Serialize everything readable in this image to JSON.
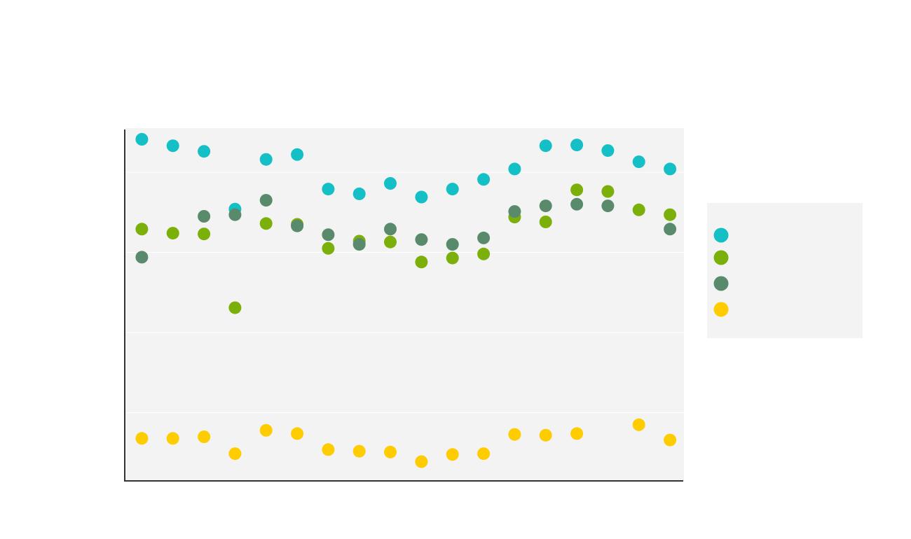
{
  "chart_data": {
    "type": "scatter",
    "title": "",
    "xlabel": "",
    "ylabel": "",
    "x": [
      1,
      2,
      3,
      4,
      5,
      6,
      7,
      8,
      9,
      10,
      11,
      12,
      13,
      14,
      15,
      16,
      17,
      18
    ],
    "xlim": [
      0.45,
      18.45
    ],
    "ylim": [
      1.5,
      45.5
    ],
    "grid": true,
    "legend_position": "right",
    "series": [
      {
        "name": "",
        "color": "#14BFC6",
        "values": [
          44.1,
          43.3,
          42.6,
          35.4,
          41.6,
          42.2,
          37.9,
          37.3,
          38.6,
          36.9,
          37.9,
          39.1,
          40.4,
          43.3,
          43.4,
          42.7,
          41.3,
          40.4
        ]
      },
      {
        "name": "",
        "color": "#7BAF0A",
        "values": [
          32.9,
          32.4,
          32.3,
          23.1,
          33.6,
          33.5,
          30.5,
          31.4,
          31.3,
          28.8,
          29.3,
          29.8,
          34.4,
          33.8,
          37.8,
          37.6,
          35.3,
          34.7
        ]
      },
      {
        "name": "",
        "color": "#5A8A6C",
        "values": [
          29.4,
          null,
          34.5,
          34.7,
          36.5,
          33.3,
          32.2,
          31.0,
          32.9,
          31.6,
          31.0,
          31.8,
          35.1,
          35.8,
          36.0,
          35.8,
          null,
          32.9
        ]
      },
      {
        "name": "",
        "color": "#FFCC00",
        "values": [
          6.8,
          6.8,
          7.0,
          4.9,
          7.8,
          7.4,
          5.4,
          5.2,
          5.1,
          3.9,
          4.8,
          4.9,
          7.3,
          7.2,
          7.4,
          null,
          8.5,
          6.6
        ]
      }
    ]
  }
}
